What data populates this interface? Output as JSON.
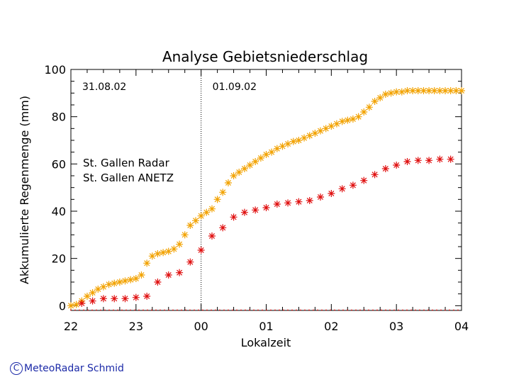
{
  "chart_data": {
    "type": "scatter",
    "title": "Analyse Gebietsniederschlag",
    "xlabel": "Lokalzeit",
    "ylabel": "Akkumulierte Regenmenge (mm)",
    "x_unit": "hours since 22:00 on 31.08.02",
    "xlim": [
      0,
      6
    ],
    "ylim": [
      -2,
      100
    ],
    "x_ticks": [
      {
        "value": 0,
        "label": "22"
      },
      {
        "value": 1,
        "label": "23"
      },
      {
        "value": 2,
        "label": "00"
      },
      {
        "value": 3,
        "label": "01"
      },
      {
        "value": 4,
        "label": "02"
      },
      {
        "value": 5,
        "label": "03"
      },
      {
        "value": 6,
        "label": "04"
      }
    ],
    "y_ticks": [
      0,
      20,
      40,
      60,
      80,
      100
    ],
    "grid": false,
    "legend_position": "top-left",
    "markers": "asterisk",
    "annotations": [
      {
        "x": 0,
        "text": "31.08.02"
      },
      {
        "x": 2,
        "text": "01.09.02"
      }
    ],
    "divider_x": 2,
    "series": [
      {
        "name": "St. Gallen Radar",
        "color": "#f2a200",
        "x": [
          0,
          0.083,
          0.167,
          0.25,
          0.333,
          0.417,
          0.5,
          0.583,
          0.667,
          0.75,
          0.833,
          0.917,
          1,
          1.083,
          1.167,
          1.25,
          1.333,
          1.417,
          1.5,
          1.583,
          1.667,
          1.75,
          1.833,
          1.917,
          2,
          2.083,
          2.167,
          2.25,
          2.333,
          2.417,
          2.5,
          2.583,
          2.667,
          2.75,
          2.833,
          2.917,
          3,
          3.083,
          3.167,
          3.25,
          3.333,
          3.417,
          3.5,
          3.583,
          3.667,
          3.75,
          3.833,
          3.917,
          4,
          4.083,
          4.167,
          4.25,
          4.333,
          4.417,
          4.5,
          4.583,
          4.667,
          4.75,
          4.833,
          4.917,
          5,
          5.083,
          5.167,
          5.25,
          5.333,
          5.417,
          5.5,
          5.583,
          5.667,
          5.75,
          5.833,
          5.917,
          6
        ],
        "y": [
          0,
          0.5,
          2,
          4,
          5.5,
          7,
          8,
          9,
          9.5,
          10,
          10.5,
          11,
          11.5,
          13,
          18,
          21,
          22,
          22.5,
          23,
          24,
          26,
          30,
          34,
          36,
          38,
          39.5,
          41,
          45,
          48,
          52,
          55,
          56.5,
          58,
          59.5,
          61,
          62.5,
          64,
          65,
          66.5,
          67.5,
          68.5,
          69.5,
          70,
          71,
          72,
          73,
          74,
          75,
          76,
          77,
          78,
          78.5,
          79,
          80,
          82,
          84,
          86.5,
          88,
          89.5,
          90,
          90.5,
          90.5,
          91,
          91,
          91,
          91,
          91,
          91,
          91,
          91,
          91,
          91,
          91
        ]
      },
      {
        "name": "St. Gallen ANETZ",
        "color": "#e01010",
        "x": [
          0.167,
          0.333,
          0.5,
          0.667,
          0.833,
          1,
          1.167,
          1.333,
          1.5,
          1.667,
          1.833,
          2,
          2.167,
          2.333,
          2.5,
          2.667,
          2.833,
          3,
          3.167,
          3.333,
          3.5,
          3.667,
          3.833,
          4,
          4.167,
          4.333,
          4.5,
          4.667,
          4.833,
          5,
          5.167,
          5.333,
          5.5,
          5.667,
          5.833
        ],
        "y": [
          1,
          2,
          3,
          3,
          3,
          3.5,
          4,
          10,
          13,
          14,
          18.5,
          23.5,
          29.5,
          33,
          37.5,
          39.5,
          40.5,
          41.5,
          43,
          43.5,
          44,
          44.5,
          46,
          47.5,
          49.5,
          51,
          53,
          55.5,
          58,
          59.5,
          61,
          61.5,
          61.5,
          62,
          62
        ]
      }
    ]
  },
  "credit": {
    "symbol": "C",
    "text": "MeteoRadar Schmid",
    "color": "#1c2aa8"
  }
}
